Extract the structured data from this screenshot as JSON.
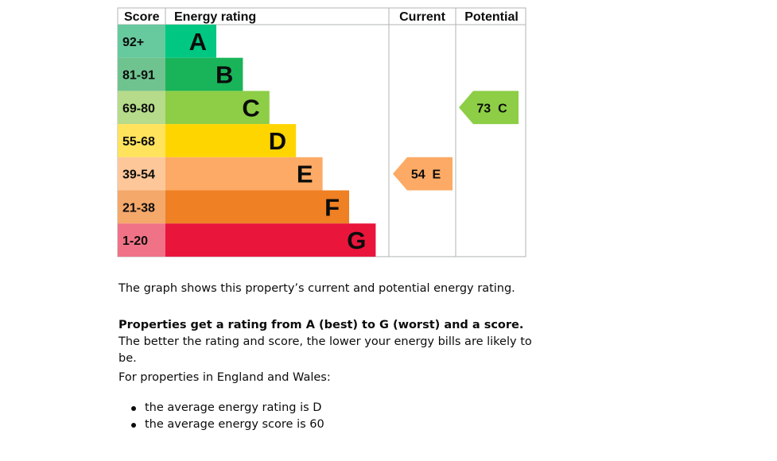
{
  "chart_data": {
    "type": "bar",
    "headers": {
      "score": "Score",
      "rating": "Energy rating",
      "current": "Current",
      "potential": "Potential"
    },
    "bands": [
      {
        "letter": "A",
        "range": "92+",
        "color": "#00c781",
        "score_color": "#67c99e"
      },
      {
        "letter": "B",
        "range": "81-91",
        "color": "#19b459",
        "score_color": "#6fc38f"
      },
      {
        "letter": "C",
        "range": "69-80",
        "color": "#8dce46",
        "score_color": "#b6db8a"
      },
      {
        "letter": "D",
        "range": "55-68",
        "color": "#ffd500",
        "score_color": "#ffe35c"
      },
      {
        "letter": "E",
        "range": "39-54",
        "color": "#fcaa65",
        "score_color": "#fdc79a"
      },
      {
        "letter": "F",
        "range": "21-38",
        "color": "#ef8023",
        "score_color": "#f4a86a"
      },
      {
        "letter": "G",
        "range": "1-20",
        "color": "#e9153b",
        "score_color": "#f07286"
      }
    ],
    "current": {
      "score": 54,
      "band": "E",
      "label": "54  E",
      "color": "#fcaa65"
    },
    "potential": {
      "score": 73,
      "band": "C",
      "label": "73  C",
      "color": "#8dce46"
    }
  },
  "text": {
    "intro": "The graph shows this property’s current and potential energy rating.",
    "explainer_bold": "Properties get a rating from A (best) to G (worst) and a score.",
    "explainer_rest": " The better the rating and score, the lower your energy bills are likely to be.",
    "region_heading": "For properties in England and Wales:",
    "averages": [
      "the average energy rating is D",
      "the average energy score is 60"
    ]
  }
}
